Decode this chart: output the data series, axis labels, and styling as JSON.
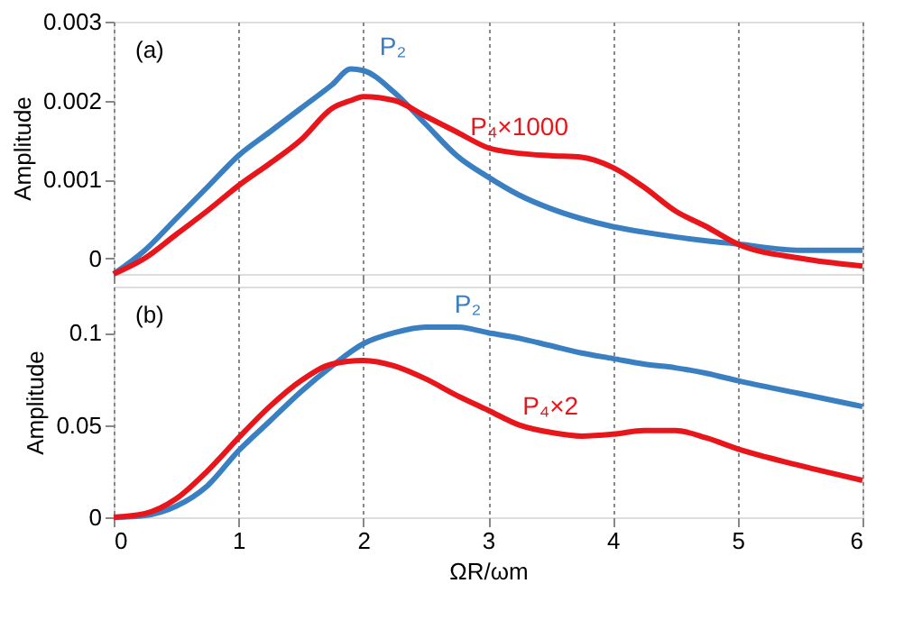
{
  "chart_data": [
    {
      "type": "line",
      "ylabel": "Amplitude",
      "annotations": [
        "(a)"
      ],
      "grid": "x",
      "tick_labels": "y",
      "x": [
        0,
        0.25,
        0.5,
        0.75,
        1,
        1.25,
        1.5,
        1.75,
        1.9,
        2,
        2.25,
        2.5,
        2.75,
        3,
        3.25,
        3.5,
        3.75,
        4,
        4.25,
        4.5,
        4.75,
        5,
        5.5,
        6
      ],
      "xlim": [
        0,
        6
      ],
      "xticks": [
        0,
        1,
        2,
        3,
        4,
        5,
        6
      ],
      "ylim": [
        -0.0002,
        0.003
      ],
      "yticks": [
        0,
        0.001,
        0.002,
        0.003
      ],
      "series": [
        {
          "name": "P₂",
          "color": "#3a7fc1",
          "values": [
            -0.0002,
            0.0001,
            0.0005,
            0.0009,
            0.0013,
            0.0016,
            0.0019,
            0.0022,
            0.0024,
            0.00238,
            0.0021,
            0.0017,
            0.0013,
            0.00103,
            0.0008,
            0.00063,
            0.0005,
            0.0004,
            0.00033,
            0.00027,
            0.00022,
            0.00018,
            0.0001,
            0.0001
          ]
        },
        {
          "name": "P₄×1000",
          "color": "#e8151b",
          "values": [
            -0.0002,
            0.0,
            0.0003,
            0.0006,
            0.00092,
            0.0012,
            0.0015,
            0.0019,
            0.002,
            0.00205,
            0.002,
            0.0018,
            0.0016,
            0.0014,
            0.00133,
            0.0013,
            0.00128,
            0.00115,
            0.0009,
            0.0006,
            0.0004,
            0.00018,
            0.0,
            -0.0001
          ]
        }
      ]
    },
    {
      "type": "line",
      "ylabel": "Amplitude",
      "xlabel": "ΩR/ωm",
      "annotations": [
        "(b)"
      ],
      "grid": "x",
      "x": [
        0,
        0.25,
        0.5,
        0.75,
        1,
        1.25,
        1.5,
        1.75,
        2,
        2.25,
        2.5,
        2.75,
        3,
        3.25,
        3.5,
        3.75,
        4,
        4.25,
        4.5,
        4.75,
        5,
        5.5,
        6
      ],
      "xlim": [
        0,
        6
      ],
      "xticks": [
        0,
        1,
        2,
        3,
        4,
        5,
        6
      ],
      "ylim": [
        0,
        0.125
      ],
      "yticks": [
        0,
        0.05,
        0.1
      ],
      "series": [
        {
          "name": "P₂",
          "color": "#3a7fc1",
          "values": [
            0,
            0.001,
            0.006,
            0.017,
            0.036,
            0.052,
            0.068,
            0.082,
            0.094,
            0.1,
            0.103,
            0.103,
            0.1,
            0.097,
            0.093,
            0.089,
            0.086,
            0.083,
            0.081,
            0.078,
            0.074,
            0.067,
            0.06
          ]
        },
        {
          "name": "P₄×2",
          "color": "#e8151b",
          "values": [
            0,
            0.002,
            0.01,
            0.025,
            0.043,
            0.06,
            0.074,
            0.083,
            0.085,
            0.082,
            0.075,
            0.066,
            0.058,
            0.05,
            0.046,
            0.044,
            0.045,
            0.047,
            0.047,
            0.043,
            0.037,
            0.028,
            0.02
          ]
        }
      ]
    }
  ]
}
